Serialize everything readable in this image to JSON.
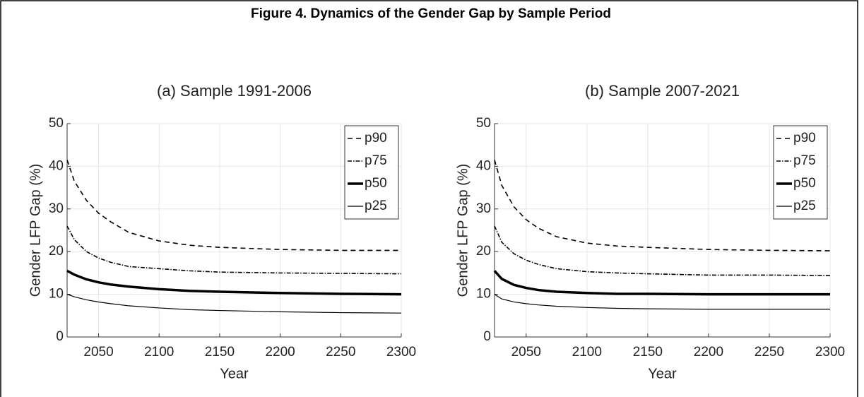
{
  "title": "Figure 4. Dynamics of the Gender Gap by Sample Period",
  "chart_data": [
    {
      "type": "line",
      "title": "(a) Sample 1991-2006",
      "xlabel": "Year",
      "ylabel": "Gender LFP Gap (%)",
      "x": [
        2024,
        2030,
        2040,
        2050,
        2060,
        2075,
        2100,
        2125,
        2150,
        2200,
        2250,
        2300
      ],
      "series": [
        {
          "name": "p90",
          "color": "#000000",
          "style": "dashed",
          "values": [
            41.5,
            36.5,
            32,
            29,
            27,
            24.5,
            22.5,
            21.5,
            21,
            20.5,
            20.3,
            20.3
          ]
        },
        {
          "name": "p75",
          "color": "#000000",
          "style": "dash-dot",
          "values": [
            26,
            22.8,
            20,
            18.5,
            17.5,
            16.5,
            16,
            15.5,
            15.2,
            15,
            14.9,
            14.8
          ]
        },
        {
          "name": "p50",
          "color": "#000000",
          "style": "bold",
          "values": [
            15.5,
            14.6,
            13.5,
            12.8,
            12.3,
            11.8,
            11.2,
            10.8,
            10.6,
            10.3,
            10.1,
            10
          ]
        },
        {
          "name": "p25",
          "color": "#000000",
          "style": "solid",
          "values": [
            10,
            9.4,
            8.7,
            8.2,
            7.8,
            7.3,
            6.8,
            6.4,
            6.2,
            5.9,
            5.7,
            5.6
          ]
        }
      ],
      "xlim": [
        2024,
        2300
      ],
      "ylim": [
        0,
        50
      ],
      "xticks": [
        2050,
        2100,
        2150,
        2200,
        2250,
        2300
      ],
      "yticks": [
        0,
        10,
        20,
        30,
        40,
        50
      ],
      "grid": true,
      "legend": "upper right"
    },
    {
      "type": "line",
      "title": "(b) Sample 2007-2021",
      "xlabel": "Year",
      "ylabel": "Gender LFP Gap (%)",
      "x": [
        2024,
        2030,
        2040,
        2050,
        2060,
        2075,
        2100,
        2125,
        2150,
        2200,
        2250,
        2300
      ],
      "series": [
        {
          "name": "p90",
          "color": "#000000",
          "style": "dashed",
          "values": [
            41.5,
            35.5,
            30.5,
            27.5,
            25.5,
            23.5,
            22,
            21.3,
            21,
            20.5,
            20.3,
            20.2
          ]
        },
        {
          "name": "p75",
          "color": "#000000",
          "style": "dash-dot",
          "values": [
            26,
            22.2,
            19.5,
            18,
            17,
            16,
            15.3,
            15,
            14.8,
            14.5,
            14.5,
            14.4
          ]
        },
        {
          "name": "p50",
          "color": "#000000",
          "style": "bold",
          "values": [
            15.5,
            13.6,
            12.2,
            11.5,
            11,
            10.6,
            10.3,
            10.1,
            10.1,
            10,
            10,
            10
          ]
        },
        {
          "name": "p25",
          "color": "#000000",
          "style": "solid",
          "values": [
            10,
            8.9,
            8.2,
            7.8,
            7.5,
            7.2,
            6.9,
            6.7,
            6.6,
            6.5,
            6.5,
            6.5
          ]
        }
      ],
      "xlim": [
        2024,
        2300
      ],
      "ylim": [
        0,
        50
      ],
      "xticks": [
        2050,
        2100,
        2150,
        2200,
        2250,
        2300
      ],
      "yticks": [
        0,
        10,
        20,
        30,
        40,
        50
      ],
      "grid": true,
      "legend": "upper right"
    }
  ]
}
